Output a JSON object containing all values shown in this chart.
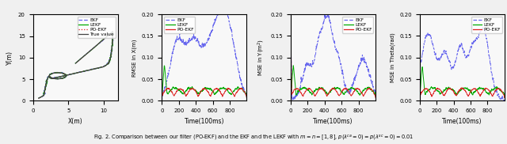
{
  "colors": {
    "EKF": "#6666ee",
    "LEKF": "#00aa00",
    "PO-EKF": "#dd2222",
    "True value": "#444444"
  },
  "subplot1": {
    "xlabel": "X(m)",
    "ylabel": "Y(m)",
    "xlim": [
      0,
      12
    ],
    "ylim": [
      0,
      20
    ],
    "xticks": [
      0,
      5,
      10
    ],
    "yticks": [
      0,
      5,
      10,
      15,
      20
    ]
  },
  "subplot2": {
    "xlabel": "Time(100ms)",
    "ylabel": "RMSE in X(m)",
    "xlim": [
      0,
      1000
    ],
    "ylim": [
      0,
      0.2
    ],
    "xticks": [
      0,
      200,
      400,
      600,
      800
    ],
    "ytick_labels": [
      "0",
      "0.05",
      "0.10",
      "0.15",
      "0.20"
    ],
    "yticks": [
      0,
      0.05,
      0.1,
      0.15,
      0.2
    ]
  },
  "subplot3": {
    "xlabel": "Time(100ms)",
    "ylabel": "MSE in Y(m^2)",
    "xlim": [
      0,
      1000
    ],
    "ylim": [
      0,
      0.2
    ],
    "xticks": [
      0,
      200,
      400,
      600,
      800
    ],
    "yticks": [
      0,
      0.05,
      0.1,
      0.15,
      0.2
    ]
  },
  "subplot4": {
    "xlabel": "Time(100ms)",
    "ylabel": "MSE in Theta(rad)",
    "xlim": [
      0,
      1000
    ],
    "ylim": [
      0,
      0.2
    ],
    "xticks": [
      0,
      200,
      400,
      600,
      800
    ],
    "yticks": [
      0,
      0.05,
      0.1,
      0.15,
      0.2
    ]
  },
  "caption": "Fig. 2. Comparison between our filter (PO-EKF) and the EKF and the LEKF with m = n = [1,8], p(λ^{ca} = 0) = p(λ^{sc} = 0) = 0.01"
}
